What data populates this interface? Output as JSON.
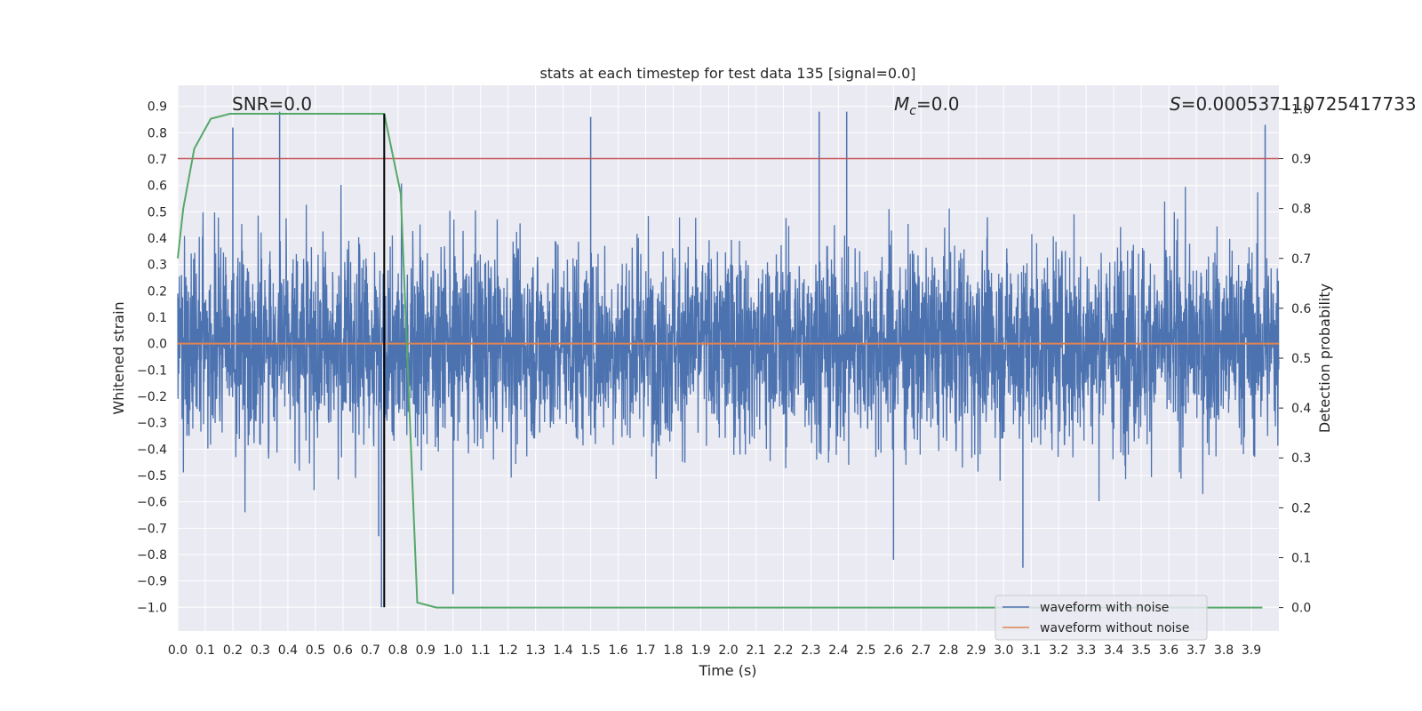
{
  "chart_data": {
    "type": "line",
    "title": "stats at each timestep for test data 135 [signal=0.0]",
    "xlabel": "Time (s)",
    "ylabel": "Whitened strain",
    "ylabel_right": "Detection probability",
    "xlim": [
      0.0,
      4.0
    ],
    "ylim": [
      -1.09,
      0.98
    ],
    "ylim_right": [
      -0.047,
      1.047
    ],
    "grid": true,
    "legend_position": "lower-right",
    "x_ticks": [
      "0.0",
      "0.1",
      "0.2",
      "0.3",
      "0.4",
      "0.5",
      "0.6",
      "0.7",
      "0.8",
      "0.9",
      "1.0",
      "1.1",
      "1.2",
      "1.3",
      "1.4",
      "1.5",
      "1.6",
      "1.7",
      "1.8",
      "1.9",
      "2.0",
      "2.1",
      "2.2",
      "2.3",
      "2.4",
      "2.5",
      "2.6",
      "2.7",
      "2.8",
      "2.9",
      "3.0",
      "3.1",
      "3.2",
      "3.3",
      "3.4",
      "3.5",
      "3.6",
      "3.7",
      "3.8",
      "3.9"
    ],
    "y_ticks_left": [
      "0.9",
      "0.8",
      "0.7",
      "0.6",
      "0.5",
      "0.4",
      "0.3",
      "0.2",
      "0.1",
      "0.0",
      "−0.1",
      "−0.2",
      "−0.3",
      "−0.4",
      "−0.5",
      "−0.6",
      "−0.7",
      "−0.8",
      "−0.9",
      "−1.0"
    ],
    "y_ticks_right": [
      "1.0",
      "0.9",
      "0.8",
      "0.7",
      "0.6",
      "0.5",
      "0.4",
      "0.3",
      "0.2",
      "0.1",
      "0.0"
    ],
    "annotations": {
      "snr": "SNR=0.0",
      "mc_symbol": "M",
      "mc_sub": "c",
      "mc_value": "=0.0",
      "s_symbol": "S",
      "s_value": "=0.000537110725417733"
    },
    "series": [
      {
        "name": "waveform with noise",
        "color": "#4c72b0",
        "noise_amplitude": 0.32,
        "x_range": [
          0.0,
          4.0
        ],
        "notable_spikes": [
          {
            "x": 0.2,
            "y": 0.82
          },
          {
            "x": 0.37,
            "y": 0.88
          },
          {
            "x": 0.74,
            "y": -1.0
          },
          {
            "x": 0.73,
            "y": -0.73
          },
          {
            "x": 1.0,
            "y": -0.95
          },
          {
            "x": 1.5,
            "y": 0.86
          },
          {
            "x": 2.33,
            "y": 0.88
          },
          {
            "x": 2.43,
            "y": 0.88
          },
          {
            "x": 2.6,
            "y": -0.82
          },
          {
            "x": 3.07,
            "y": -0.85
          },
          {
            "x": 3.95,
            "y": 0.83
          }
        ]
      },
      {
        "name": "waveform without noise",
        "color": "#dd8452",
        "x": [
          0.0,
          4.0
        ],
        "y": [
          0.0,
          0.0
        ]
      },
      {
        "name": "Detection probability",
        "axis": "right",
        "color": "#55a868",
        "x": [
          0.0,
          0.02,
          0.06,
          0.12,
          0.19,
          0.25,
          0.31,
          0.37,
          0.44,
          0.5,
          0.56,
          0.62,
          0.69,
          0.75,
          0.81,
          0.87,
          0.94,
          1.0,
          1.5,
          2.0,
          2.5,
          3.0,
          3.5,
          3.94
        ],
        "y": [
          0.7,
          0.8,
          0.92,
          0.98,
          0.99,
          0.99,
          0.99,
          0.99,
          0.99,
          0.99,
          0.99,
          0.99,
          0.99,
          0.99,
          0.83,
          0.01,
          0.0,
          0.0,
          0.0,
          0.0,
          0.0,
          0.0,
          0.0,
          0.0
        ]
      }
    ],
    "threshold": {
      "axis": "right",
      "y": 0.9,
      "color": "#c44e52"
    },
    "marker_line": {
      "x": 0.75,
      "color": "#000000"
    },
    "extra_gridlines_left": [
      0.13,
      -0.06
    ]
  }
}
